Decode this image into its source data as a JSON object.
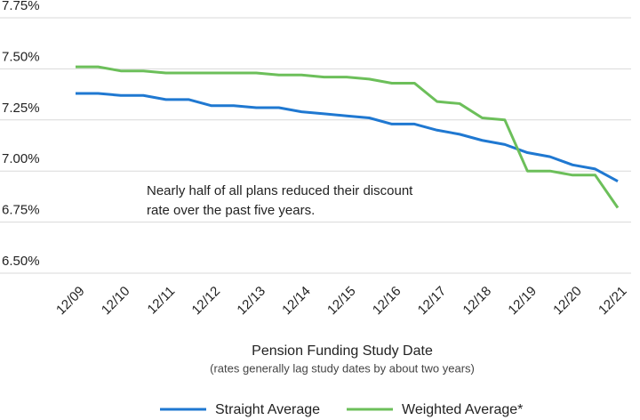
{
  "chart_data": {
    "type": "line",
    "categories": [
      "12/09",
      null,
      "12/10",
      null,
      "12/11",
      null,
      "12/12",
      null,
      "12/13",
      null,
      "12/14",
      null,
      "12/15",
      null,
      "12/16",
      null,
      "12/17",
      null,
      "12/18",
      null,
      "12/19",
      null,
      "12/20",
      null,
      "12/21"
    ],
    "series": [
      {
        "name": "Straight Average",
        "color": "#1f78d1",
        "values": [
          7.38,
          7.38,
          7.37,
          7.37,
          7.35,
          7.35,
          7.32,
          7.32,
          7.31,
          7.31,
          7.29,
          7.28,
          7.27,
          7.26,
          7.23,
          7.23,
          7.2,
          7.18,
          7.15,
          7.13,
          7.09,
          7.07,
          7.03,
          7.01,
          6.95
        ]
      },
      {
        "name": "Weighted Average*",
        "color": "#6cbf5a",
        "values": [
          7.51,
          7.51,
          7.49,
          7.49,
          7.48,
          7.48,
          7.48,
          7.48,
          7.48,
          7.47,
          7.47,
          7.46,
          7.46,
          7.45,
          7.43,
          7.43,
          7.34,
          7.33,
          7.26,
          7.25,
          7.0,
          7.0,
          6.98,
          6.98,
          6.82
        ]
      }
    ],
    "ylim": [
      6.5,
      7.75
    ],
    "yticks": [
      {
        "value": 6.5,
        "label": "6.50%"
      },
      {
        "value": 6.75,
        "label": "6.75%"
      },
      {
        "value": 7.0,
        "label": "7.00%"
      },
      {
        "value": 7.25,
        "label": "7.25%"
      },
      {
        "value": 7.5,
        "label": "7.50%"
      },
      {
        "value": 7.75,
        "label": "7.75%"
      }
    ],
    "grid": true,
    "legend": "bottom",
    "xlabel": "Pension Funding Study Date",
    "xlabel_note": "(rates generally lag study dates by about two years)",
    "annotation": [
      "Nearly half of all plans reduced their discount",
      "rate over the past five years."
    ]
  }
}
